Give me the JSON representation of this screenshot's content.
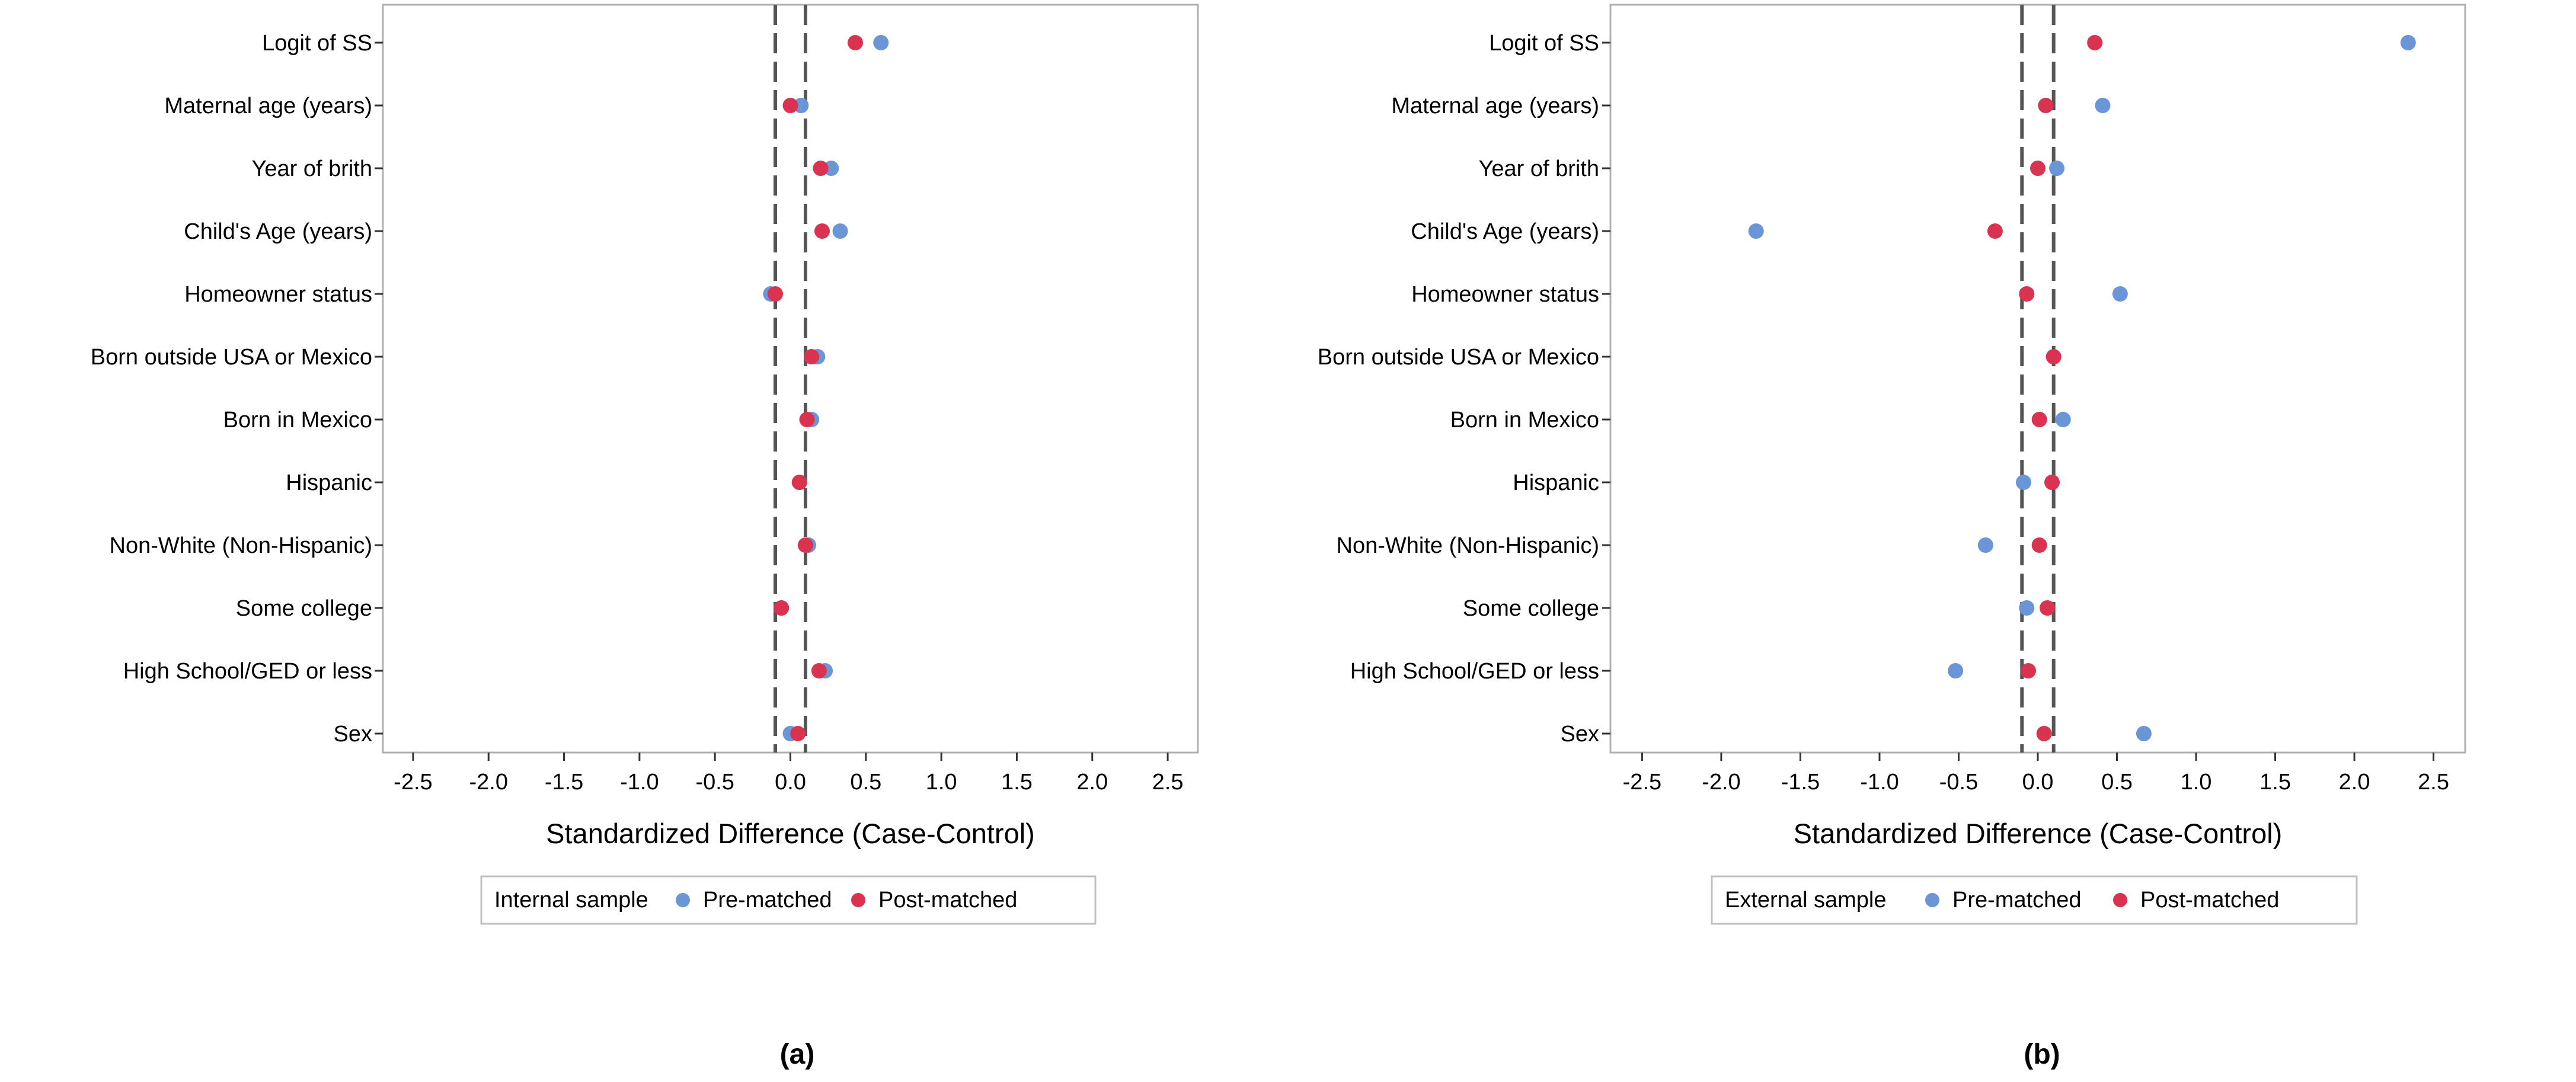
{
  "colors": {
    "pre_matched": "#6A95D6",
    "post_matched": "#D9334F",
    "frame": "#b0b0b0",
    "ref_line": "#555555",
    "text": "#000000",
    "legend_border": "#c0c0c0"
  },
  "chart_data": [
    {
      "type": "scatter",
      "panel_label": "(a)",
      "xlabel": "Standardized Difference (Case-Control)",
      "xlim": [
        -2.7,
        2.7
      ],
      "xticks": [
        "-2.5",
        "-2.0",
        "-1.5",
        "-1.0",
        "-0.5",
        "0.0",
        "0.5",
        "1.0",
        "1.5",
        "2.0",
        "2.5"
      ],
      "reference_lines": [
        -0.1,
        0.1
      ],
      "categories": [
        "Logit of SS",
        "Maternal age (years)",
        "Year of brith",
        "Child's Age (years)",
        "Homeowner status",
        "Born outside USA or Mexico",
        "Born in Mexico",
        "Hispanic",
        "Non-White (Non-Hispanic)",
        "Some college",
        "High School/GED or less",
        "Sex"
      ],
      "legend": {
        "title": "Internal sample",
        "entries": [
          "Pre-matched",
          "Post-matched"
        ]
      },
      "series": [
        {
          "name": "Pre-matched",
          "values": [
            0.6,
            0.07,
            0.27,
            0.33,
            -0.13,
            0.18,
            0.14,
            0.06,
            0.12,
            -0.06,
            0.23,
            0.0
          ]
        },
        {
          "name": "Post-matched",
          "values": [
            0.43,
            0.0,
            0.2,
            0.21,
            -0.1,
            0.14,
            0.11,
            0.06,
            0.1,
            -0.06,
            0.19,
            0.05
          ]
        }
      ]
    },
    {
      "type": "scatter",
      "panel_label": "(b)",
      "xlabel": "Standardized Difference (Case-Control)",
      "xlim": [
        -2.7,
        2.7
      ],
      "xticks": [
        "-2.5",
        "-2.0",
        "-1.5",
        "-1.0",
        "-0.5",
        "0.0",
        "0.5",
        "1.0",
        "1.5",
        "2.0",
        "2.5"
      ],
      "reference_lines": [
        -0.1,
        0.1
      ],
      "categories": [
        "Logit of SS",
        "Maternal age (years)",
        "Year of brith",
        "Child's Age (years)",
        "Homeowner status",
        "Born outside USA or Mexico",
        "Born in Mexico",
        "Hispanic",
        "Non-White (Non-Hispanic)",
        "Some college",
        "High School/GED or less",
        "Sex"
      ],
      "legend": {
        "title": "External sample",
        "entries": [
          "Pre-matched",
          "Post-matched"
        ]
      },
      "series": [
        {
          "name": "Pre-matched",
          "values": [
            2.34,
            0.41,
            0.12,
            -1.78,
            0.52,
            0.1,
            0.16,
            -0.09,
            -0.33,
            -0.07,
            -0.52,
            0.67
          ]
        },
        {
          "name": "Post-matched",
          "values": [
            0.36,
            0.05,
            0.0,
            -0.27,
            -0.07,
            0.1,
            0.01,
            0.09,
            0.01,
            0.06,
            -0.06,
            0.04
          ]
        }
      ]
    }
  ]
}
